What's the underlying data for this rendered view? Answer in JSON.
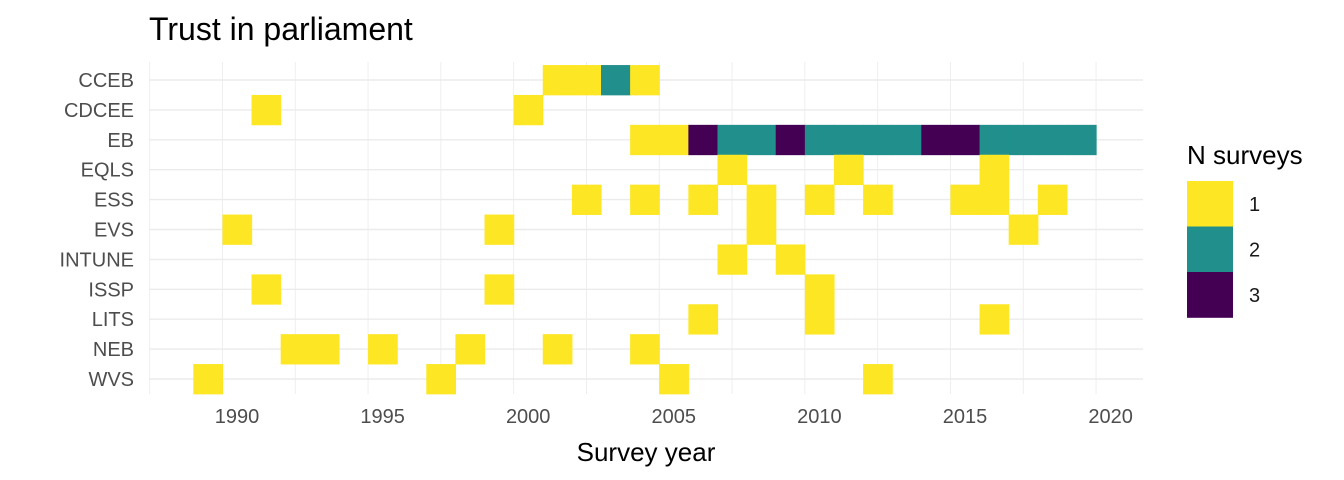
{
  "chart_data": {
    "type": "heatmap",
    "title": "Trust in parliament",
    "xlabel": "Survey year",
    "ylabel": "",
    "xlim": [
      1987,
      2021
    ],
    "x_ticks": [
      1990,
      1995,
      2000,
      2005,
      2010,
      2015,
      2020
    ],
    "categories": [
      "CCEB",
      "CDCEE",
      "EB",
      "EQLS",
      "ESS",
      "EVS",
      "INTUNE",
      "ISSP",
      "LITS",
      "NEB",
      "WVS"
    ],
    "legend": {
      "title": "N surveys",
      "position": "right",
      "entries": [
        {
          "label": "1",
          "color": "#FDE725"
        },
        {
          "label": "2",
          "color": "#21908C"
        },
        {
          "label": "3",
          "color": "#440154"
        }
      ]
    },
    "colors": {
      "1": "#FDE725",
      "2": "#21908C",
      "3": "#440154"
    },
    "grid": true,
    "cells": [
      {
        "survey": "CCEB",
        "year": 2001,
        "n": 1
      },
      {
        "survey": "CCEB",
        "year": 2002,
        "n": 1
      },
      {
        "survey": "CCEB",
        "year": 2003,
        "n": 2
      },
      {
        "survey": "CCEB",
        "year": 2004,
        "n": 1
      },
      {
        "survey": "CDCEE",
        "year": 1991,
        "n": 1
      },
      {
        "survey": "CDCEE",
        "year": 2000,
        "n": 1
      },
      {
        "survey": "EB",
        "year": 2004,
        "n": 1
      },
      {
        "survey": "EB",
        "year": 2005,
        "n": 1
      },
      {
        "survey": "EB",
        "year": 2006,
        "n": 3
      },
      {
        "survey": "EB",
        "year": 2007,
        "n": 2
      },
      {
        "survey": "EB",
        "year": 2008,
        "n": 2
      },
      {
        "survey": "EB",
        "year": 2009,
        "n": 3
      },
      {
        "survey": "EB",
        "year": 2010,
        "n": 2
      },
      {
        "survey": "EB",
        "year": 2011,
        "n": 2
      },
      {
        "survey": "EB",
        "year": 2012,
        "n": 2
      },
      {
        "survey": "EB",
        "year": 2013,
        "n": 2
      },
      {
        "survey": "EB",
        "year": 2014,
        "n": 3
      },
      {
        "survey": "EB",
        "year": 2015,
        "n": 3
      },
      {
        "survey": "EB",
        "year": 2016,
        "n": 2
      },
      {
        "survey": "EB",
        "year": 2017,
        "n": 2
      },
      {
        "survey": "EB",
        "year": 2018,
        "n": 2
      },
      {
        "survey": "EB",
        "year": 2019,
        "n": 2
      },
      {
        "survey": "EQLS",
        "year": 2007,
        "n": 1
      },
      {
        "survey": "EQLS",
        "year": 2011,
        "n": 1
      },
      {
        "survey": "EQLS",
        "year": 2016,
        "n": 1
      },
      {
        "survey": "ESS",
        "year": 2002,
        "n": 1
      },
      {
        "survey": "ESS",
        "year": 2004,
        "n": 1
      },
      {
        "survey": "ESS",
        "year": 2006,
        "n": 1
      },
      {
        "survey": "ESS",
        "year": 2008,
        "n": 1
      },
      {
        "survey": "ESS",
        "year": 2010,
        "n": 1
      },
      {
        "survey": "ESS",
        "year": 2012,
        "n": 1
      },
      {
        "survey": "ESS",
        "year": 2015,
        "n": 1
      },
      {
        "survey": "ESS",
        "year": 2016,
        "n": 1
      },
      {
        "survey": "ESS",
        "year": 2018,
        "n": 1
      },
      {
        "survey": "EVS",
        "year": 1990,
        "n": 1
      },
      {
        "survey": "EVS",
        "year": 1999,
        "n": 1
      },
      {
        "survey": "EVS",
        "year": 2008,
        "n": 1
      },
      {
        "survey": "EVS",
        "year": 2017,
        "n": 1
      },
      {
        "survey": "INTUNE",
        "year": 2007,
        "n": 1
      },
      {
        "survey": "INTUNE",
        "year": 2009,
        "n": 1
      },
      {
        "survey": "ISSP",
        "year": 1991,
        "n": 1
      },
      {
        "survey": "ISSP",
        "year": 1999,
        "n": 1
      },
      {
        "survey": "ISSP",
        "year": 2010,
        "n": 1
      },
      {
        "survey": "LITS",
        "year": 2006,
        "n": 1
      },
      {
        "survey": "LITS",
        "year": 2010,
        "n": 1
      },
      {
        "survey": "LITS",
        "year": 2016,
        "n": 1
      },
      {
        "survey": "NEB",
        "year": 1992,
        "n": 1
      },
      {
        "survey": "NEB",
        "year": 1993,
        "n": 1
      },
      {
        "survey": "NEB",
        "year": 1995,
        "n": 1
      },
      {
        "survey": "NEB",
        "year": 1998,
        "n": 1
      },
      {
        "survey": "NEB",
        "year": 2001,
        "n": 1
      },
      {
        "survey": "NEB",
        "year": 2004,
        "n": 1
      },
      {
        "survey": "WVS",
        "year": 1989,
        "n": 1
      },
      {
        "survey": "WVS",
        "year": 1997,
        "n": 1
      },
      {
        "survey": "WVS",
        "year": 2005,
        "n": 1
      },
      {
        "survey": "WVS",
        "year": 2012,
        "n": 1
      }
    ]
  }
}
